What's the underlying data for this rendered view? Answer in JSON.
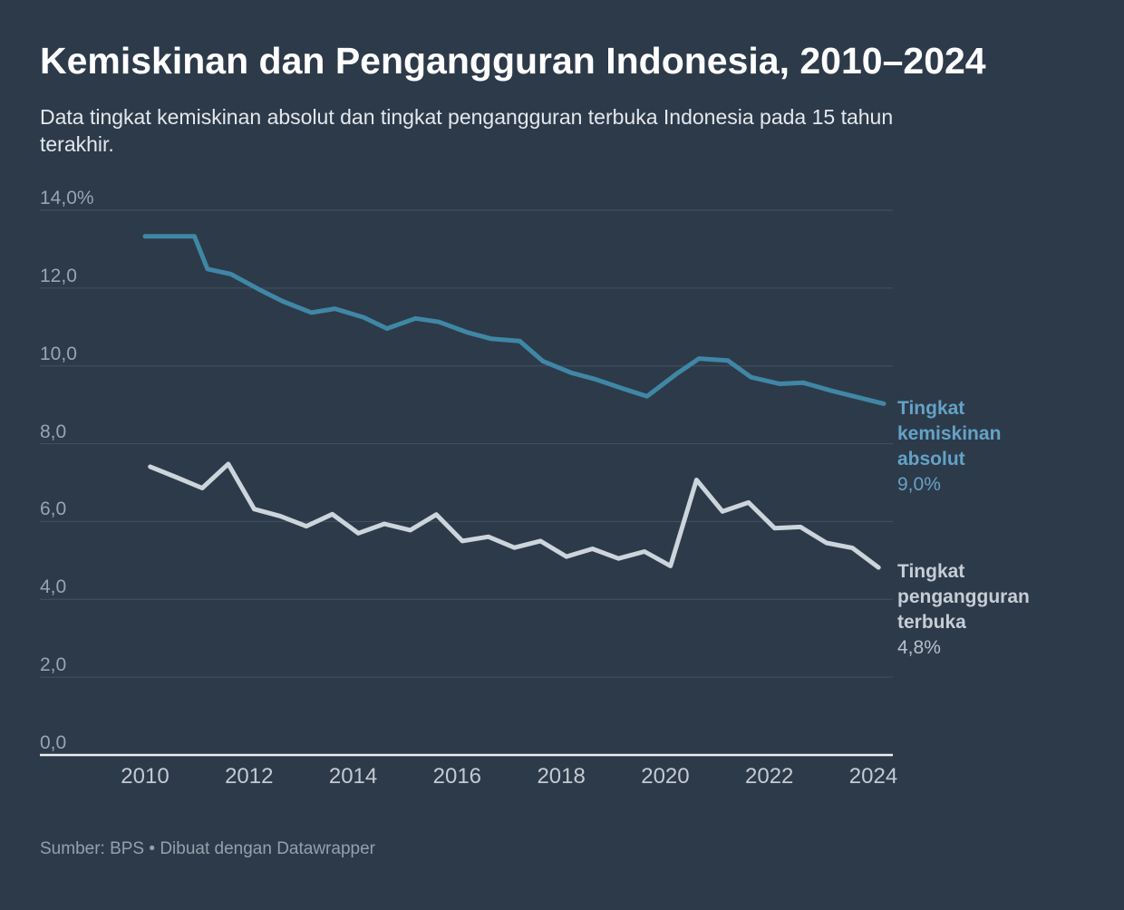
{
  "header": {
    "title": "Kemiskinan dan Pengangguran Indonesia, 2010–2024",
    "subtitle_lines": [
      "Data tingkat kemiskinan absolut dan tingkat pengangguran terbuka Indonesia pada 15 tahun",
      "terakhir."
    ]
  },
  "annotations": {
    "poverty": {
      "lines": [
        "Tingkat",
        "kemiskinan",
        "absolut"
      ],
      "value": "9,0%"
    },
    "unemployment": {
      "lines": [
        "Tingkat",
        "pengangguran",
        "terbuka"
      ],
      "value": "4,8%"
    }
  },
  "footer": {
    "source": "Sumber: BPS • Dibuat dengan Datawrapper"
  },
  "colors": {
    "background": "#2d3a4a",
    "title": "#ffffff",
    "subtitle": "#e3e8ed",
    "grid": "#46515f",
    "baseline": "#eef1f3",
    "y_tick_text": "#9aa4b0",
    "x_tick_text": "#c3cad2",
    "poverty_line": "#3f87a5",
    "poverty_label": "#64a2c6",
    "unemployment_line": "#ccd5db",
    "unemployment_label": "#c6cdd5",
    "unemployment_value": "#b7c0c9",
    "footer": "#96a0ab"
  },
  "chart_data": {
    "type": "line",
    "title": "Kemiskinan dan Pengangguran Indonesia, 2010–2024",
    "x_axis": {
      "min": 2010,
      "max": 2024,
      "ticks": [
        2010,
        2012,
        2014,
        2016,
        2018,
        2020,
        2022,
        2024
      ]
    },
    "y_axis": {
      "min": 0,
      "max": 14,
      "unit": "%",
      "ticks": [
        {
          "value": 14,
          "label": "14,0%"
        },
        {
          "value": 12,
          "label": "12,0"
        },
        {
          "value": 10,
          "label": "10,0"
        },
        {
          "value": 8,
          "label": "8,0"
        },
        {
          "value": 6,
          "label": "6,0"
        },
        {
          "value": 4,
          "label": "4,0"
        },
        {
          "value": 2,
          "label": "2,0"
        },
        {
          "value": 0,
          "label": "0,0"
        }
      ]
    },
    "series": [
      {
        "id": "poverty",
        "name": "Tingkat kemiskinan absolut",
        "color": "#3f87a5",
        "end_value_label": "9,0%",
        "points": [
          [
            2010.0,
            13.33
          ],
          [
            2010.95,
            13.33
          ],
          [
            2011.2,
            12.49
          ],
          [
            2011.65,
            12.36
          ],
          [
            2012.2,
            11.96
          ],
          [
            2012.65,
            11.66
          ],
          [
            2013.2,
            11.37
          ],
          [
            2013.65,
            11.47
          ],
          [
            2014.2,
            11.25
          ],
          [
            2014.65,
            10.96
          ],
          [
            2015.2,
            11.22
          ],
          [
            2015.65,
            11.13
          ],
          [
            2016.2,
            10.86
          ],
          [
            2016.65,
            10.7
          ],
          [
            2017.2,
            10.64
          ],
          [
            2017.65,
            10.12
          ],
          [
            2018.2,
            9.82
          ],
          [
            2018.65,
            9.66
          ],
          [
            2019.2,
            9.41
          ],
          [
            2019.65,
            9.22
          ],
          [
            2020.2,
            9.78
          ],
          [
            2020.65,
            10.19
          ],
          [
            2021.2,
            10.14
          ],
          [
            2021.65,
            9.71
          ],
          [
            2022.2,
            9.54
          ],
          [
            2022.65,
            9.57
          ],
          [
            2023.2,
            9.36
          ],
          [
            2024.2,
            9.03
          ]
        ]
      },
      {
        "id": "unemployment",
        "name": "Tingkat pengangguran terbuka",
        "color": "#ccd5db",
        "end_value_label": "4,8%",
        "points": [
          [
            2010.1,
            7.41
          ],
          [
            2010.6,
            7.14
          ],
          [
            2011.1,
            6.86
          ],
          [
            2011.6,
            7.48
          ],
          [
            2012.1,
            6.32
          ],
          [
            2012.6,
            6.14
          ],
          [
            2013.1,
            5.88
          ],
          [
            2013.6,
            6.19
          ],
          [
            2014.1,
            5.7
          ],
          [
            2014.6,
            5.94
          ],
          [
            2015.1,
            5.78
          ],
          [
            2015.6,
            6.18
          ],
          [
            2016.1,
            5.5
          ],
          [
            2016.6,
            5.61
          ],
          [
            2017.1,
            5.33
          ],
          [
            2017.6,
            5.5
          ],
          [
            2018.1,
            5.1
          ],
          [
            2018.6,
            5.3
          ],
          [
            2019.1,
            5.05
          ],
          [
            2019.6,
            5.23
          ],
          [
            2020.1,
            4.86
          ],
          [
            2020.6,
            7.07
          ],
          [
            2021.1,
            6.26
          ],
          [
            2021.6,
            6.49
          ],
          [
            2022.1,
            5.83
          ],
          [
            2022.6,
            5.86
          ],
          [
            2023.1,
            5.45
          ],
          [
            2023.6,
            5.32
          ],
          [
            2024.1,
            4.82
          ]
        ]
      }
    ]
  }
}
